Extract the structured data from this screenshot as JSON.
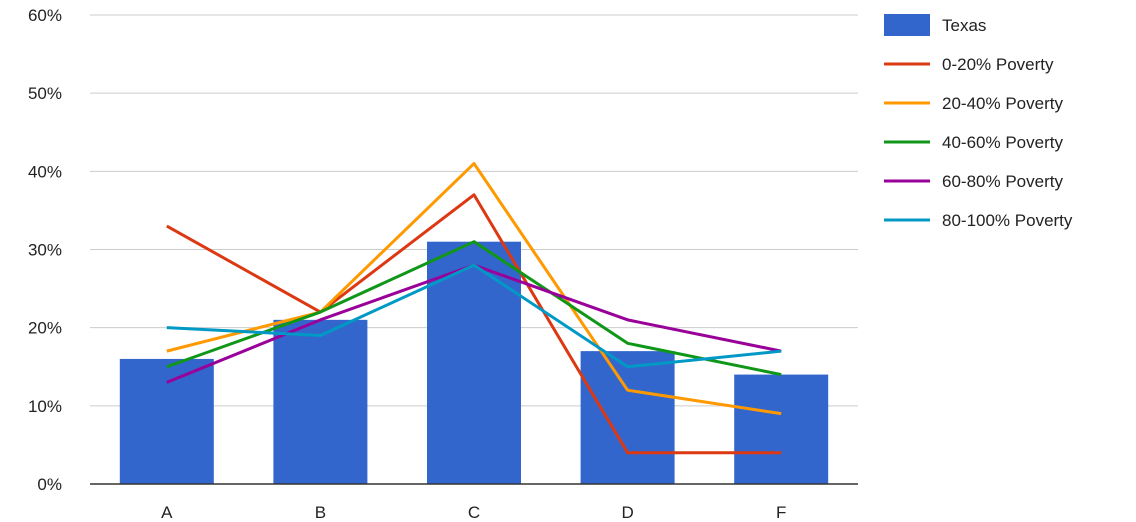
{
  "chart_data": {
    "type": "bar",
    "categories": [
      "A",
      "B",
      "C",
      "D",
      "F"
    ],
    "ylim": [
      0,
      60
    ],
    "yticks": [
      0,
      10,
      20,
      30,
      40,
      50,
      60
    ],
    "ytick_labels": [
      "0%",
      "10%",
      "20%",
      "30%",
      "40%",
      "50%",
      "60%"
    ],
    "grid": true,
    "legend_position": "right",
    "bar_series": {
      "name": "Texas",
      "values": [
        16,
        21,
        31,
        17,
        14
      ],
      "color": "#3366cc"
    },
    "line_series": [
      {
        "name": "0-20% Poverty",
        "values": [
          33,
          22,
          37,
          4,
          4
        ],
        "color": "#dc3912"
      },
      {
        "name": "20-40% Poverty",
        "values": [
          17,
          22,
          41,
          12,
          9
        ],
        "color": "#ff9900"
      },
      {
        "name": "40-60% Poverty",
        "values": [
          15,
          22,
          31,
          18,
          14
        ],
        "color": "#109618"
      },
      {
        "name": "60-80% Poverty",
        "values": [
          13,
          21,
          28,
          21,
          17
        ],
        "color": "#990099"
      },
      {
        "name": "80-100% Poverty",
        "values": [
          20,
          19,
          28,
          15,
          17
        ],
        "color": "#0099c6"
      }
    ]
  }
}
